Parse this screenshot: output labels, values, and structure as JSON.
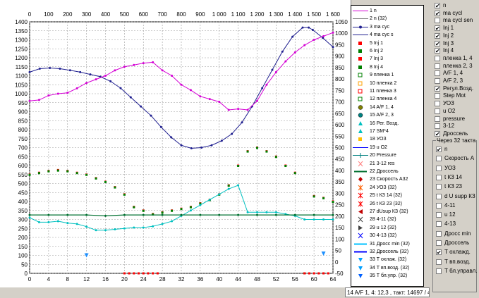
{
  "chart_data": {
    "type": "line",
    "x_top": {
      "min": 0,
      "max": 1500,
      "ticks": [
        "0",
        "100",
        "200",
        "300",
        "400",
        "500",
        "600",
        "700",
        "800",
        "900",
        "1 000",
        "1 100",
        "1 200",
        "1 300",
        "1 400",
        "1 500",
        "1 600"
      ]
    },
    "x_bottom": {
      "min": 0,
      "max": 64,
      "ticks": [
        "0",
        "4",
        "8",
        "12",
        "16",
        "20",
        "24",
        "28",
        "32",
        "36",
        "40",
        "44",
        "48",
        "52",
        "56",
        "60",
        "64"
      ]
    },
    "y_left": {
      "min": 0,
      "max": 1400,
      "ticks": [
        "0",
        "50",
        "100",
        "150",
        "200",
        "250",
        "300",
        "350",
        "400",
        "450",
        "500",
        "550",
        "600",
        "650",
        "700",
        "750",
        "800",
        "850",
        "900",
        "950",
        "1000",
        "1050",
        "1100",
        "1150",
        "1200",
        "1250",
        "1300",
        "1350",
        "1400"
      ]
    },
    "y_right": {
      "min": -50,
      "max": 1050,
      "ticks": [
        "-50",
        "0",
        "50",
        "100",
        "150",
        "200",
        "250",
        "300",
        "350",
        "400",
        "450",
        "500",
        "550",
        "600",
        "650",
        "700",
        "750",
        "800",
        "850",
        "900",
        "950",
        "1000",
        "1050"
      ]
    },
    "grid": true,
    "series": [
      {
        "name": "ma cyc",
        "color": "#1f1f8f",
        "axis": "top-right",
        "x": [
          0,
          50,
          100,
          150,
          200,
          250,
          300,
          350,
          400,
          450,
          500,
          550,
          600,
          650,
          700,
          750,
          800,
          850,
          900,
          950,
          1000,
          1050,
          1100,
          1150,
          1200,
          1250,
          1300,
          1350,
          1380,
          1400,
          1450,
          1500
        ],
        "y": [
          830,
          845,
          848,
          845,
          838,
          830,
          820,
          810,
          790,
          760,
          720,
          680,
          640,
          590,
          545,
          510,
          497,
          500,
          510,
          530,
          560,
          610,
          680,
          760,
          840,
          920,
          985,
          1025,
          1025,
          1015,
          980,
          940
        ]
      },
      {
        "name": "n",
        "color": "#d400d4",
        "axis": "bottom-left",
        "x": [
          0,
          2,
          4,
          6,
          8,
          10,
          12,
          14,
          16,
          18,
          20,
          22,
          24,
          26,
          28,
          30,
          32,
          34,
          36,
          38,
          40,
          42,
          44,
          46,
          48,
          50,
          52,
          54,
          56,
          58,
          60,
          62,
          64
        ],
        "y": [
          960,
          965,
          990,
          1000,
          1005,
          1030,
          1060,
          1080,
          1100,
          1130,
          1150,
          1160,
          1170,
          1175,
          1130,
          1100,
          1050,
          1020,
          985,
          970,
          955,
          910,
          915,
          910,
          960,
          1050,
          1120,
          1180,
          1230,
          1270,
          1300,
          1320,
          1340
        ]
      },
      {
        "name": "Inj 3",
        "color": "#ff0000",
        "axis": "bottom-left",
        "marker": "square",
        "x": [
          0,
          2,
          4,
          6,
          8,
          10,
          12,
          14,
          16,
          18,
          20,
          22,
          24,
          26,
          28,
          30,
          32,
          34,
          36,
          38,
          40,
          42,
          44,
          46,
          48,
          50,
          52,
          54,
          56,
          58,
          60,
          62,
          64
        ],
        "y": [
          550,
          560,
          570,
          575,
          570,
          560,
          550,
          530,
          510,
          480,
          440,
          370,
          350,
          330,
          340,
          350,
          360,
          370,
          390,
          410,
          440,
          490,
          600,
          680,
          700,
          680,
          650,
          600,
          560,
          0,
          430,
          420,
          400
        ]
      },
      {
        "name": "Inj 4",
        "color": "#008000",
        "axis": "bottom-left",
        "marker": "square",
        "x": [
          0,
          2,
          4,
          6,
          8,
          10,
          12,
          14,
          16,
          18,
          20,
          22,
          24,
          26,
          28,
          30,
          32,
          34,
          36,
          38,
          40,
          42,
          44,
          46,
          48,
          50,
          52,
          54,
          56,
          58,
          60,
          62,
          64
        ],
        "y": [
          548,
          558,
          568,
          572,
          568,
          558,
          548,
          528,
          508,
          478,
          438,
          368,
          348,
          328,
          338,
          348,
          358,
          368,
          388,
          408,
          438,
          488,
          598,
          678,
          698,
          678,
          648,
          598,
          558,
          0,
          428,
          418,
          398
        ]
      },
      {
        "name": "Pressure",
        "color": "#00c0c0",
        "axis": "bottom-left",
        "x": [
          0,
          2,
          4,
          6,
          8,
          10,
          12,
          14,
          16,
          18,
          20,
          22,
          24,
          26,
          28,
          30,
          32,
          34,
          36,
          38,
          40,
          42,
          44,
          46,
          48,
          50,
          52,
          54,
          56,
          58,
          60,
          62,
          64
        ],
        "y": [
          310,
          285,
          285,
          290,
          280,
          275,
          260,
          240,
          240,
          245,
          250,
          255,
          255,
          262,
          275,
          290,
          320,
          350,
          380,
          410,
          440,
          470,
          490,
          340,
          340,
          340,
          340,
          330,
          320,
          300,
          300,
          300,
          300
        ]
      },
      {
        "name": "Дроссель",
        "color": "#007030",
        "axis": "bottom-left",
        "x": [
          0,
          4,
          8,
          12,
          16,
          20,
          24,
          28,
          32,
          36,
          40,
          44,
          48,
          52,
          56,
          60,
          64
        ],
        "y": [
          325,
          325,
          325,
          325,
          320,
          325,
          325,
          325,
          325,
          325,
          325,
          325,
          325,
          325,
          325,
          325,
          325
        ]
      },
      {
        "name": "Inj 1",
        "color": "#ff0000",
        "axis": "bottom-left",
        "marker": "square",
        "x": [
          20,
          21,
          22,
          23,
          24,
          25,
          26,
          27,
          58,
          59,
          60,
          61,
          62,
          63
        ],
        "y": [
          0,
          0,
          0,
          0,
          0,
          0,
          0,
          0,
          0,
          0,
          0,
          0,
          0,
          0
        ]
      }
    ]
  },
  "legend": {
    "items": [
      {
        "label": "1 n",
        "color": "#d400d4",
        "icon": "line"
      },
      {
        "label": "2 n (32)",
        "color": "#808080",
        "icon": "line"
      },
      {
        "label": "3 ma cyc",
        "color": "#1f1f8f",
        "icon": "dot-line"
      },
      {
        "label": "4 ma cyc s",
        "color": "#1f1f8f",
        "icon": "line"
      },
      {
        "label": "5 Inj 1",
        "color": "#ff0000",
        "icon": "square"
      },
      {
        "label": "6 Inj 2",
        "color": "#008000",
        "icon": "square"
      },
      {
        "label": "7 Inj 3",
        "color": "#ff0000",
        "icon": "square"
      },
      {
        "label": "8 Inj 4",
        "color": "#008000",
        "icon": "square"
      },
      {
        "label": "9  пленка 1",
        "color": "#008000",
        "icon": "hollow-square"
      },
      {
        "label": "10 пленка 2",
        "color": "#ffa000",
        "icon": "hollow-square"
      },
      {
        "label": "11 пленка 3",
        "color": "#ff0000",
        "icon": "hollow-square"
      },
      {
        "label": "12 пленка 4",
        "color": "#008000",
        "icon": "hollow-square"
      },
      {
        "label": "14 A/F 1, 4",
        "color": "#808000",
        "icon": "circle"
      },
      {
        "label": "15 A/F 2, 3",
        "color": "#008080",
        "icon": "circle"
      },
      {
        "label": "16 Рег. Возд.",
        "color": "#00c0c0",
        "icon": "triangle"
      },
      {
        "label": "17 SM*4",
        "color": "#00c0c0",
        "icon": "triangle"
      },
      {
        "label": "18 УОЗ",
        "color": "#ffc000",
        "icon": "square"
      },
      {
        "label": "19 u O2",
        "color": "#0000ff",
        "icon": "line"
      },
      {
        "label": "20 Pressure",
        "color": "#008080",
        "icon": "plus"
      },
      {
        "label": "21 3-12 res",
        "color": "#ff8080",
        "icon": "cross"
      },
      {
        "label": "22 Дроссель",
        "color": "#007030",
        "icon": "dash"
      },
      {
        "label": "23 Скорость А32",
        "color": "#c00000",
        "icon": "diamond"
      },
      {
        "label": "24 УОЗ (32)",
        "color": "#ff6000",
        "icon": "star"
      },
      {
        "label": "25 t КЗ 14 (32)",
        "color": "#ff0000",
        "icon": "star"
      },
      {
        "label": "26 t КЗ 23 (32)",
        "color": "#ff0000",
        "icon": "star"
      },
      {
        "label": "27 dUsup КЗ (32)",
        "color": "#c00000",
        "icon": "tri-left"
      },
      {
        "label": "28 4-11 (32)",
        "color": "#404040",
        "icon": "x"
      },
      {
        "label": "29 u 12 (32)",
        "color": "#404040",
        "icon": "tri-right"
      },
      {
        "label": "30 4-13 (32)",
        "color": "#0000ff",
        "icon": "x"
      },
      {
        "label": "31 Дросс min (32)",
        "color": "#00c0ff",
        "icon": "dash"
      },
      {
        "label": "32 Дроссель (32)",
        "color": "#0000ff",
        "icon": "dash"
      },
      {
        "label": "33 Т охлаж. (32)",
        "color": "#00a0ff",
        "icon": "tri-down"
      },
      {
        "label": "34 Т вп.возд. (32)",
        "color": "#00a0ff",
        "icon": "tri-down"
      },
      {
        "label": "35 Т бл.упр. (32)",
        "color": "#0060ff",
        "icon": "tri-down"
      }
    ]
  },
  "status_bar": {
    "text": "14 A/F 1, 4: 12,3 , такт: 14697 / 41"
  },
  "panel_top": {
    "items": [
      {
        "label": "n",
        "checked": true
      },
      {
        "label": "ma cycl",
        "checked": true
      },
      {
        "label": "ma cycl sen",
        "checked": false
      },
      {
        "label": "Inj 1",
        "checked": true
      },
      {
        "label": "Inj 2",
        "checked": true
      },
      {
        "label": "Inj 3",
        "checked": true
      },
      {
        "label": "Inj 4",
        "checked": true
      },
      {
        "label": "пленка 1, 4",
        "checked": false
      },
      {
        "label": "пленка 2, 3",
        "checked": false
      },
      {
        "label": "A/F 1, 4",
        "checked": false
      },
      {
        "label": "A/F 2, 3",
        "checked": false
      },
      {
        "label": "Регул.Возд.",
        "checked": true
      },
      {
        "label": "Step Mot",
        "checked": false
      },
      {
        "label": "УОЗ",
        "checked": false
      },
      {
        "label": "u O2",
        "checked": false
      },
      {
        "label": "pressure",
        "checked": false
      },
      {
        "label": "3-12",
        "checked": false
      },
      {
        "label": "Дроссель",
        "checked": true
      }
    ]
  },
  "panel_bottom": {
    "title": "Через 32 такта",
    "items": [
      {
        "label": "n",
        "checked": true
      },
      {
        "label": "Скорость А",
        "checked": false
      },
      {
        "label": "УОЗ",
        "checked": false
      },
      {
        "label": "t КЗ 14",
        "checked": false
      },
      {
        "label": "t КЗ 23",
        "checked": false
      },
      {
        "label": "d U supp КЗ",
        "checked": false
      },
      {
        "label": "4-11",
        "checked": false
      },
      {
        "label": "u 12",
        "checked": false
      },
      {
        "label": "4-13",
        "checked": false
      },
      {
        "label": "Дросс min",
        "checked": false
      },
      {
        "label": "Дроссель",
        "checked": false
      },
      {
        "label": "Т охлажд.",
        "checked": true
      },
      {
        "label": "Т вп.возд.",
        "checked": false
      },
      {
        "label": "Т бл.управл.",
        "checked": false
      }
    ]
  }
}
